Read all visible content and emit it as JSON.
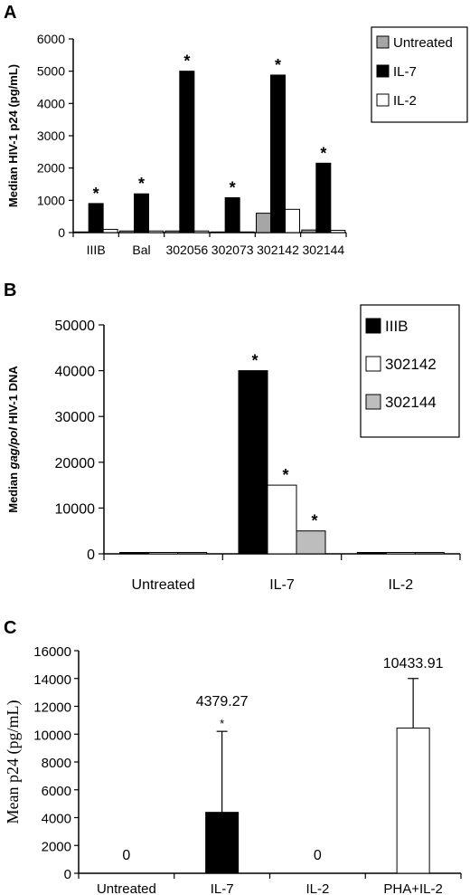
{
  "panels": {
    "a": {
      "letter": "A"
    },
    "b": {
      "letter": "B"
    },
    "c": {
      "letter": "C"
    }
  },
  "colors": {
    "untreated": "#a6a6a6",
    "il7": "#000000",
    "il2": "#ffffff",
    "gray": "#bdbdbd"
  },
  "chart_data": [
    {
      "type": "bar",
      "panel": "A",
      "ylabel": "Median HIV-1 p24 (pg/mL)",
      "ylim": [
        0,
        6000
      ],
      "yticks": [
        0,
        1000,
        2000,
        3000,
        4000,
        5000,
        6000
      ],
      "categories": [
        "IIIB",
        "Bal",
        "302056",
        "302073",
        "302142",
        "302144"
      ],
      "series": [
        {
          "name": "Untreated",
          "values": [
            20,
            50,
            50,
            20,
            600,
            80
          ]
        },
        {
          "name": "IL-7",
          "values": [
            900,
            1200,
            5000,
            1080,
            4880,
            2150
          ]
        },
        {
          "name": "IL-2",
          "values": [
            100,
            50,
            50,
            20,
            720,
            70
          ]
        }
      ],
      "annotations": [
        "*",
        "*",
        "*",
        "*",
        "*",
        "*"
      ],
      "legend": "top-right"
    },
    {
      "type": "bar",
      "panel": "B",
      "ylabel_parts": [
        "Median ",
        "gag/pol",
        " HIV-1 DNA"
      ],
      "ylim": [
        0,
        50000
      ],
      "yticks": [
        0,
        10000,
        20000,
        30000,
        40000,
        50000
      ],
      "categories": [
        "Untreated",
        "IL-7",
        "IL-2"
      ],
      "series": [
        {
          "name": "IIIB",
          "values": [
            300,
            40000,
            300
          ]
        },
        {
          "name": "302142",
          "values": [
            300,
            15000,
            300
          ]
        },
        {
          "name": "302144",
          "values": [
            300,
            5000,
            300
          ]
        }
      ],
      "annotations": [
        "*",
        "*",
        "*"
      ],
      "legend": "top-right"
    },
    {
      "type": "bar",
      "panel": "C",
      "ylabel": "Mean p24 (pg/mL)",
      "ylim": [
        0,
        16000
      ],
      "yticks": [
        0,
        2000,
        4000,
        6000,
        8000,
        10000,
        12000,
        14000,
        16000
      ],
      "categories": [
        "Untreated",
        "IL-7",
        "IL-2",
        "PHA+IL-2"
      ],
      "values": [
        0,
        4379.27,
        0,
        10433.91
      ],
      "error_upper": [
        0,
        10200,
        0,
        14000
      ],
      "data_labels": [
        "0",
        "4379.27",
        "0",
        "10433.91"
      ],
      "annotations": [
        "",
        "*",
        "",
        ""
      ]
    }
  ]
}
